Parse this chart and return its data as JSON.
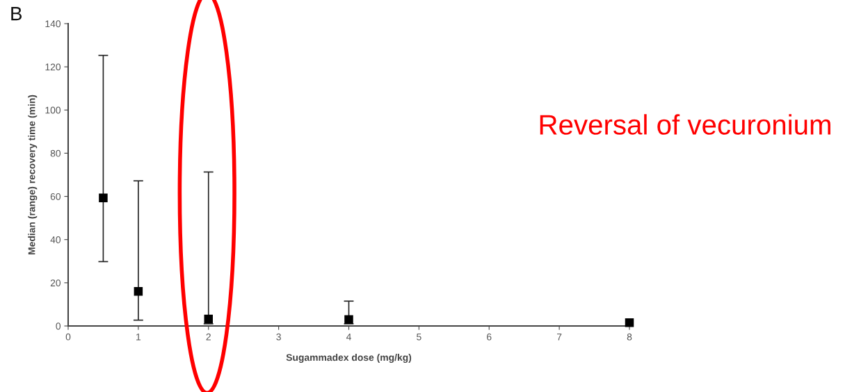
{
  "chart_data": {
    "type": "scatter",
    "xlabel": "Sugammadex dose (mg/kg)",
    "ylabel": "Median (range) recovery time (min)",
    "x": [
      0.5,
      1,
      2,
      4,
      8
    ],
    "series": [
      {
        "color": "#000000",
        "values": [
          59.3,
          16.0,
          3.2,
          3.0,
          1.5
        ],
        "errors": [
          [
            29.8,
            125.3
          ],
          [
            2.7,
            67.2
          ],
          [
            1,
            71.3
          ],
          [
            1,
            11.5
          ],
          null
        ]
      }
    ],
    "marker": "square",
    "xlim": [
      0,
      8
    ],
    "xticks": [
      0,
      1,
      2,
      3,
      4,
      5,
      6,
      7,
      8
    ],
    "ylim": [
      0,
      140
    ],
    "yticks": [
      0,
      20,
      40,
      60,
      80,
      100,
      120,
      140
    ],
    "grid": false,
    "annotations": [
      "B",
      "Reversal of vecuronium"
    ]
  }
}
